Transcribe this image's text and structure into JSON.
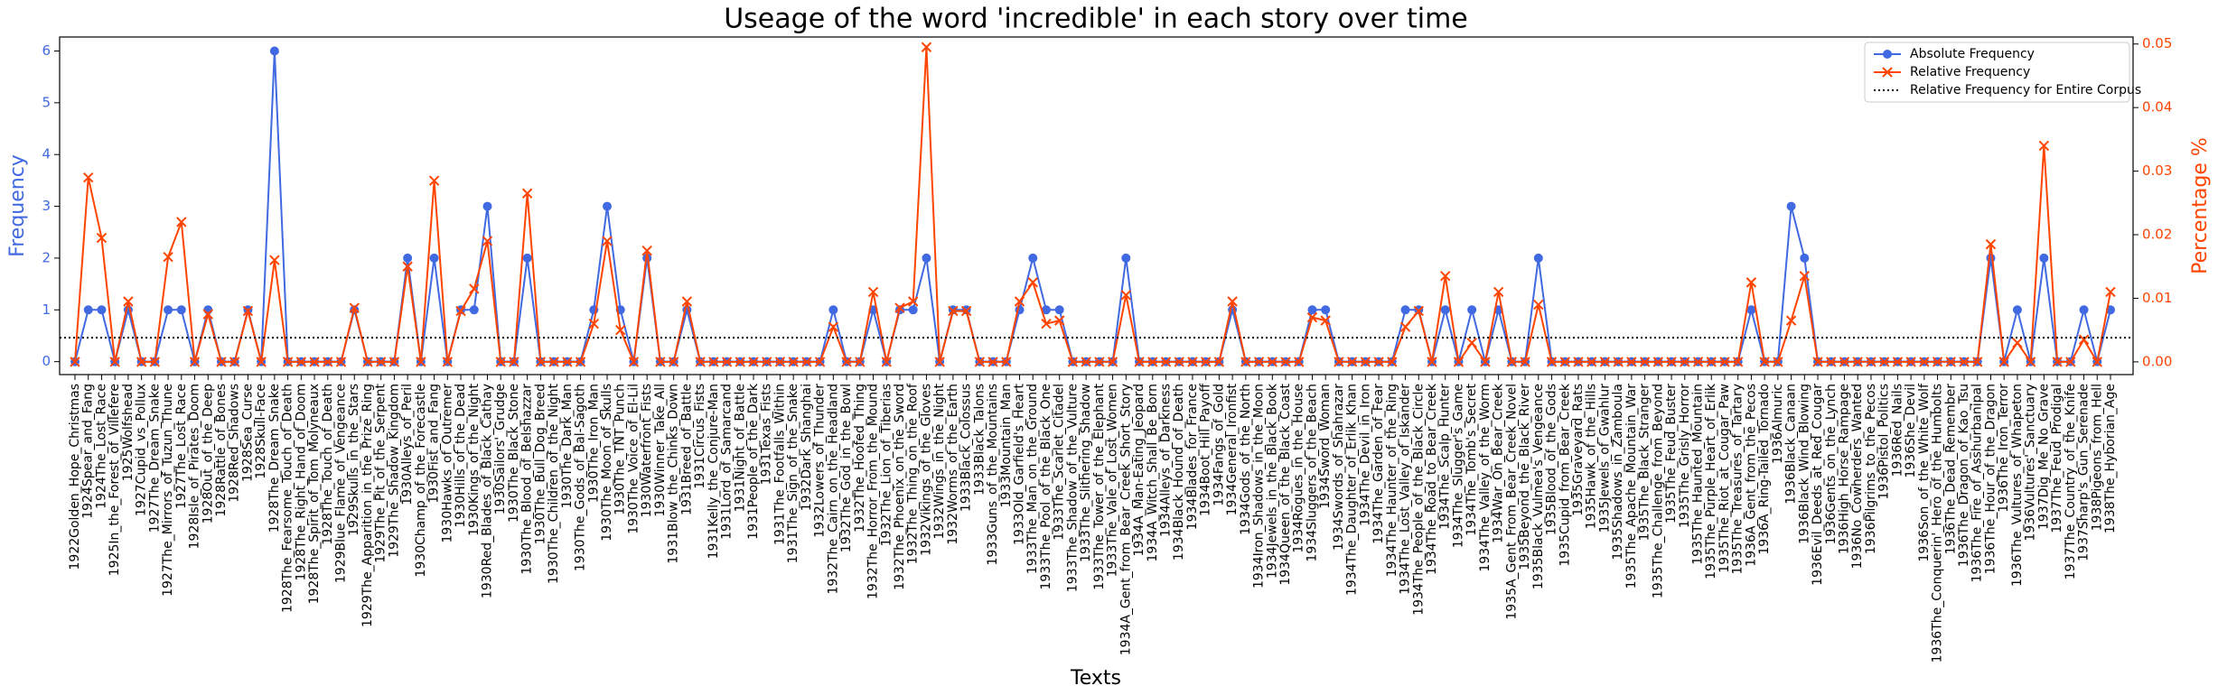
{
  "chart_data": {
    "type": "line",
    "title": "Useage of the word 'incredible' in each story over time",
    "xlabel": "Texts",
    "ylabel": "Frequency",
    "y2label": "Percentage %",
    "categories": [
      "1922Golden_Hope_Christmas",
      "1924Spear_and_Fang",
      "1924The_Lost_Race",
      "1925In_the_Forest_of_Villefere",
      "1925Wolfshead",
      "1927Cupid_vs_Pollux",
      "1927The_Dream_Snake",
      "1927The_Mirrors_of_Tuzun_Thune",
      "1927The_Lost_Race",
      "1928Isle_of_Pirates_Doom",
      "1928Out_of_the_Deep",
      "1928Rattle_of_Bones",
      "1928Red_Shadows",
      "1928Sea_Curse",
      "1928Skull-Face",
      "1928The_Dream_Snake",
      "1928The_Fearsome_Touch_of_Death",
      "1928The_Right_Hand_of_Doom",
      "1928The_Spirit_of_Tom_Molyneaux",
      "1928The_Touch_of_Death",
      "1929Blue_Flame_of_Vengeance",
      "1929Skulls_in_the_Stars",
      "1929The_Apparition_in_the_Prize_Ring",
      "1929The_Pit_of_the_Serpent",
      "1929The_Shadow_Kingdom",
      "1930Alleys_of_Peril",
      "1930Champ_of_the_Forecastle",
      "1930Fist_and_Fang",
      "1930Hawks_of_Outremer",
      "1930Hills_of_the_Dead",
      "1930Kings_of_the_Night",
      "1930Red_Blades_of_Black_Cathay",
      "1930Sailors'_Grudge",
      "1930The_Black_Stone",
      "1930The_Blood_of_Belshazzar",
      "1930The_Bull_Dog_Breed",
      "1930The_Children_of_the_Night",
      "1930The_Dark_Man",
      "1930The_Gods_of_Bal-Sagoth",
      "1930The_Iron_Man",
      "1930The_Moon_of_Skulls",
      "1930The_TNT_Punch",
      "1930The_Voice_of_El-Lil",
      "1930Waterfront_Fists",
      "1930Winner_Take_All",
      "1931Blow_the_Chinks_Down",
      "1931Breed_of_Battle",
      "1931Circus_Fists",
      "1931Kelly_the_Conjure-Man",
      "1931Lord_of_Samarcand",
      "1931Night_of_Battle",
      "1931People_of_the_Dark",
      "1931Texas_Fists",
      "1931The_Footfalls_Within",
      "1931The_Sign_of_the_Snake",
      "1932Dark_Shanghai",
      "1932Lowers_of_Thunder",
      "1932The_Cairn_on_the_Headland",
      "1932The_God_in_the_Bowl",
      "1932The_Hoofed_Thing",
      "1932The_Horror_From_the_Mound",
      "1932The_Lion_of_Tiberias",
      "1932The_Phoenix_on_the_Sword",
      "1932The_Thing_on_the_Roof",
      "1932Vikings_of_the_Gloves",
      "1932Wings_in_the_Night",
      "1932Worms_of_the_Earth",
      "1933Black_Colossus",
      "1933Black_Talons",
      "1933Guns_of_the_Mountains",
      "1933Mountain_Man",
      "1933Old_Garfield's_Heart",
      "1933The_Man_on_the_Ground",
      "1933The_Pool_of_the_Black_One",
      "1933The_Scarlet_Citadel",
      "1933The_Shadow_of_the_Vulture",
      "1933The_Slithering_Shadow",
      "1933The_Tower_of_the_Elephant",
      "1933The_Vale_of_Lost_Women",
      "1934A_Gent_from_Bear_Creek_Short_Story",
      "1934A_Man-Eating_Jeopard",
      "1934A_Witch_Shall_Be_Born",
      "1934Alleys_of_Darkness",
      "1934Black_Hound_of_Death",
      "1934Blades_for_France",
      "1934Boot_Hill_Payoff",
      "1934Fangs_of_Gold",
      "1934General_Ironfist",
      "1934Gods_of_the_North",
      "1934Iron_Shadows_in_the_Moon",
      "1934Jewels_in_the_Black_Book",
      "1934Queen_of_the_Black_Coast",
      "1934Rogues_in_the_House",
      "1934Sluggers_of_the_Beach",
      "1934Sword_Woman",
      "1934Swords_of_Shahrazar",
      "1934The_Daughter_of_Erlik_Khan",
      "1934The_Devil_in_Iron",
      "1934The_Garden_of_Fear",
      "1934The_Haunter_of_the_Ring",
      "1934The_Lost_Valley_of_Iskander",
      "1934The_People_of_the_Black_Circle",
      "1934The_Road_to_Bear_Creek",
      "1934The_Scalp_Hunter",
      "1934The_Slugger's_Game",
      "1934The_Tomb's_Secret",
      "1934The_Valley_of_the_Worm",
      "1934War_On_Bear_Creek",
      "1935A_Gent_From_Bear_Creek_Novel",
      "1935Beyond_the_Black_River",
      "1935Black_Vulmea's_Vengeance",
      "1935Blood_of_the_Gods",
      "1935Cupid_from_Bear_Creek",
      "1935Graveyard_Rats",
      "1935Hawk_of_the_Hills",
      "1935Jewels_of_Gwahlur",
      "1935Shadows_in_Zamboula",
      "1935The_Apache_Mountain_War",
      "1935The_Black_Stranger",
      "1935The_Challenge_from_Beyond",
      "1935The_Feud_Buster",
      "1935The_Grisly_Horror",
      "1935The_Haunted_Mountain",
      "1935The_Purple_Heart_of_Erlik",
      "1935The_Riot_at_Cougar_Paw",
      "1935The_Treasures_of_Tartary",
      "1936A_Gent_from_the_Pecos",
      "1936A_Ring-Tailed_Tornado",
      "1936Almuric",
      "1936Black_Canaan",
      "1936Black_Wind_Blowing",
      "1936Evil_Deeds_at_Red_Cougar",
      "1936Gents_on_the_Lynch",
      "1936High_Horse_Rampage",
      "1936No_Cowherders_Wanted",
      "1936Pilgrims_to_the_Pecos",
      "1936Pistol_Politics",
      "1936Red_Nails",
      "1936She_Devil",
      "1936Son_of_the_White_Wolf",
      "1936The_Conquerin'_Hero_of_the_Humbolts",
      "1936The_Dead_Remember",
      "1936The_Dragon_of_Kao_Tsu",
      "1936The_Fire_of_Asshurbanipal",
      "1936The_Hour_of_the_Dragon",
      "1936The_Iron_Terror",
      "1936The_Vultures_of_Whapeton",
      "1936Vultures'_Sanctuary",
      "1937Dig_Me_No_Grave",
      "1937The_Feud_Prodigal",
      "1937The_Country_of_the_Knife",
      "1937Sharp's_Gun_Serenade",
      "1938Pigeons_from_Hell",
      "1938The_Hyborian_Age"
    ],
    "series": [
      {
        "name": "Absolute Frequency",
        "color": "#4169e1",
        "marker": "o",
        "values": [
          0,
          1,
          1,
          0,
          1,
          0,
          0,
          1,
          1,
          0,
          1,
          0,
          0,
          1,
          0,
          6,
          0,
          0,
          0,
          0,
          0,
          1,
          0,
          0,
          0,
          2,
          0,
          2,
          0,
          1,
          1,
          3,
          0,
          0,
          2,
          0,
          0,
          0,
          0,
          1,
          3,
          1,
          0,
          2,
          0,
          0,
          1,
          0,
          0,
          0,
          0,
          0,
          0,
          0,
          0,
          0,
          0,
          1,
          0,
          0,
          1,
          0,
          1,
          1,
          2,
          0,
          1,
          1,
          0,
          0,
          0,
          1,
          2,
          1,
          1,
          0,
          0,
          0,
          0,
          2,
          0,
          0,
          0,
          0,
          0,
          0,
          0,
          1,
          0,
          0,
          0,
          0,
          0,
          1,
          1,
          0,
          0,
          0,
          0,
          0,
          1,
          1,
          0,
          1,
          0,
          1,
          0,
          1,
          0,
          0,
          2,
          0,
          0,
          0,
          0,
          0,
          0,
          0,
          0,
          0,
          0,
          0,
          0,
          0,
          0,
          0,
          1,
          0,
          0,
          3,
          2,
          0,
          0,
          0,
          0,
          0,
          0,
          0,
          0,
          0,
          0,
          0,
          0,
          0,
          2,
          0,
          1,
          0,
          2,
          0,
          0,
          1,
          0,
          1
        ]
      },
      {
        "name": "Relative Frequency",
        "color": "#ff4500",
        "marker": "x",
        "axis": "y2",
        "values": [
          0,
          0.029,
          0.0195,
          0,
          0.0095,
          0,
          0,
          0.0165,
          0.022,
          0,
          0.0075,
          0,
          0,
          0.008,
          0,
          0.016,
          0,
          0,
          0,
          0,
          0,
          0.0085,
          0,
          0,
          0,
          0.015,
          0,
          0.0285,
          0,
          0.008,
          0.0115,
          0.019,
          0,
          0,
          0.0265,
          0,
          0,
          0,
          0,
          0.006,
          0.019,
          0.005,
          0,
          0.0175,
          0,
          0,
          0.0095,
          0,
          0,
          0,
          0,
          0,
          0,
          0,
          0,
          0,
          0,
          0.0055,
          0,
          0,
          0.011,
          0,
          0.0085,
          0.0095,
          0.0495,
          0,
          0.008,
          0.008,
          0,
          0,
          0,
          0.0095,
          0.0125,
          0.006,
          0.0065,
          0,
          0,
          0,
          0,
          0.0105,
          0,
          0,
          0,
          0,
          0,
          0,
          0,
          0.0095,
          0,
          0,
          0,
          0,
          0,
          0.007,
          0.0065,
          0,
          0,
          0,
          0,
          0,
          0.0055,
          0.008,
          0,
          0.0135,
          0,
          0.003,
          0,
          0.011,
          0,
          0,
          0.009,
          0,
          0,
          0,
          0,
          0,
          0,
          0,
          0,
          0,
          0,
          0,
          0,
          0,
          0,
          0,
          0.0125,
          0,
          0,
          0.0065,
          0.0135,
          0,
          0,
          0,
          0,
          0,
          0,
          0,
          0,
          0,
          0,
          0,
          0,
          0,
          0.0185,
          0,
          0.003,
          0,
          0.034,
          0,
          0,
          0.0035,
          0,
          0.011
        ]
      },
      {
        "name": "Relative Frequency for Entire Corpus",
        "color": "#000000",
        "style": "dotted",
        "axis": "y2",
        "value": 0.0038
      }
    ],
    "ylim": [
      -0.25,
      6.27
    ],
    "yticks": [
      0,
      1,
      2,
      3,
      4,
      5,
      6
    ],
    "y2lim": [
      -0.002,
      0.0511
    ],
    "y2ticks": [
      {
        "value": 0,
        "label": "0.00"
      },
      {
        "value": 0.01,
        "label": "0.01"
      },
      {
        "value": 0.02,
        "label": "0.02"
      },
      {
        "value": 0.03,
        "label": "0.03"
      },
      {
        "value": 0.04,
        "label": "0.04"
      },
      {
        "value": 0.05,
        "label": "0.05"
      }
    ],
    "legend": "upper right",
    "grid": false
  }
}
